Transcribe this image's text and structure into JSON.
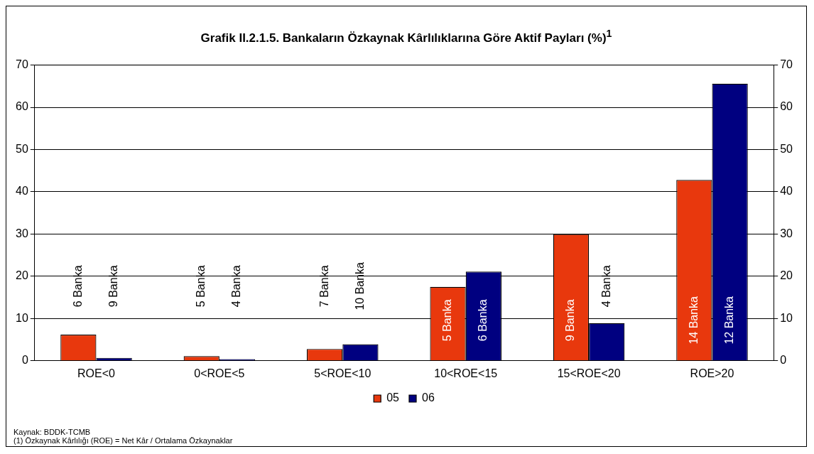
{
  "chart_data": {
    "type": "bar",
    "title": "Grafik II.2.1.5. Bankaların Özkaynak Kârlılıklarına Göre Aktif Payları (%)$^{1}$",
    "categories": [
      "ROE<0",
      "0<ROE<5",
      "5<ROE<10",
      "10<ROE<15",
      "15<ROE<20",
      "ROE>20"
    ],
    "series": [
      {
        "name": "05",
        "color": "#e8380d",
        "values": [
          6.2,
          1.1,
          2.8,
          17.5,
          30.0,
          42.8
        ]
      },
      {
        "name": "06",
        "color": "#000080",
        "values": [
          0.7,
          0.4,
          3.9,
          21.1,
          8.9,
          65.6
        ]
      }
    ],
    "ylim": [
      0,
      70
    ],
    "yticks": [
      0,
      10,
      20,
      30,
      40,
      50,
      60,
      70
    ],
    "y2lim": [
      0,
      70
    ],
    "y2ticks": [
      0,
      10,
      20,
      30,
      40,
      50,
      60,
      70
    ],
    "grid": "y",
    "legend": "bottom",
    "annotations": [
      "6 Banka",
      "9 Banka",
      "5 Banka",
      "4 Banka",
      "7 Banka",
      "10 Banka",
      "5 Banka",
      "6 Banka",
      "9 Banka",
      "4 Banka",
      "14 Banka",
      "12 Banka",
      "Kaynak: BDDK-TCMB",
      "(1) Özkaynak Kârlılığı (ROE) = Net Kâr / Ortalama Özkaynaklar"
    ]
  }
}
